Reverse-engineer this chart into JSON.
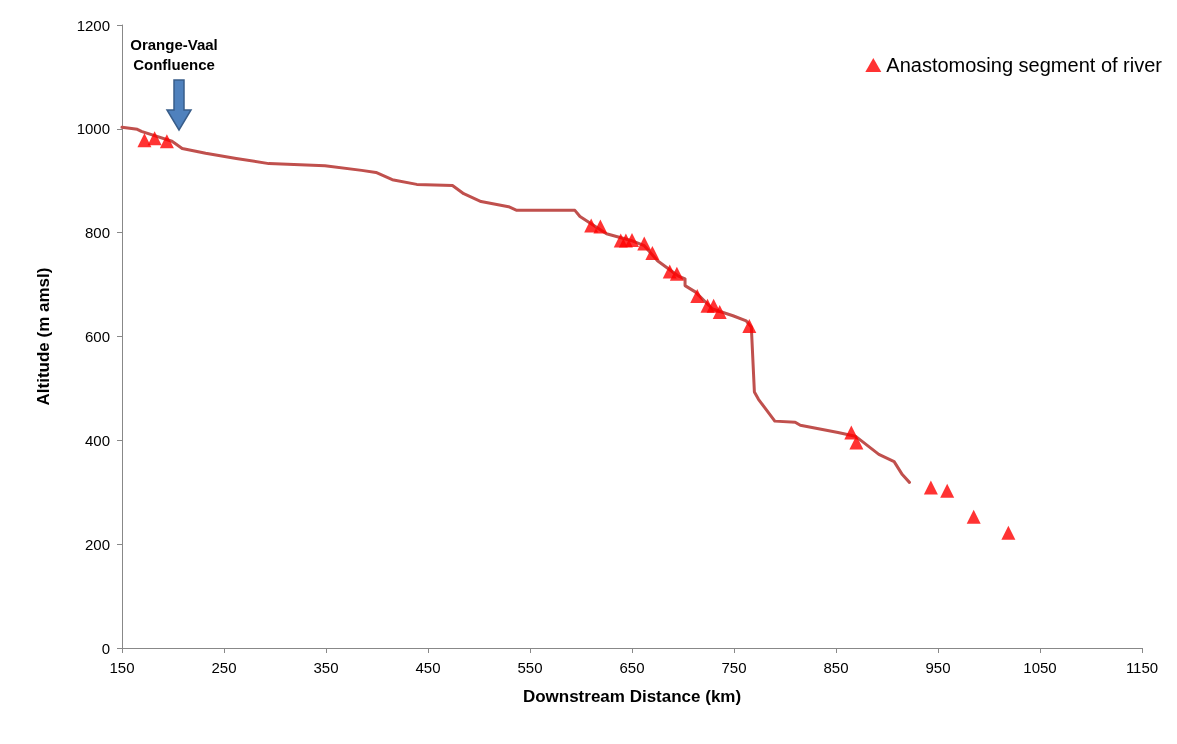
{
  "chart_data": {
    "type": "line",
    "xlabel": "Downstream Distance (km)",
    "ylabel": "Altitude (m amsl)",
    "xlim": [
      150,
      1150
    ],
    "xticks": [
      150,
      250,
      350,
      450,
      550,
      650,
      750,
      850,
      950,
      1050,
      1150
    ],
    "ylim": [
      0,
      1200
    ],
    "yticks": [
      0,
      200,
      400,
      600,
      800,
      1000,
      1200
    ],
    "grid": false,
    "legend": "top right",
    "annotations": [
      "Orange-Vaal Confluence"
    ],
    "series": [
      {
        "color": "#c0504d",
        "marker": "none",
        "line_style": "solid",
        "x": [
          150,
          165,
          169,
          199,
          209,
          232,
          262,
          294,
          349,
          385,
          399,
          415,
          439,
          474,
          485,
          502,
          529,
          537,
          594,
          599,
          625,
          649,
          662,
          675,
          695,
          702,
          702,
          712,
          729,
          749,
          762,
          767,
          770,
          774,
          790,
          810,
          815,
          852,
          869,
          892,
          907,
          915,
          922
        ],
        "values": [
          1003,
          999,
          995,
          976,
          962,
          953,
          943,
          933,
          929,
          920,
          916,
          902,
          893,
          891,
          875,
          860,
          850,
          843,
          843,
          831,
          798,
          785,
          775,
          746,
          717,
          711,
          698,
          686,
          653,
          640,
          630,
          618,
          493,
          479,
          437,
          435,
          429,
          415,
          408,
          373,
          359,
          334,
          319
        ]
      },
      {
        "type": "scatter",
        "name": "Anastomosing segment of river",
        "color": "#ff0000",
        "marker": "triangle",
        "x": [
          172,
          182,
          194,
          610,
          619,
          639,
          644,
          650,
          662,
          670,
          687,
          694,
          714,
          724,
          730,
          736,
          765,
          865,
          870,
          943,
          959,
          985,
          1019
        ],
        "values": [
          978,
          982,
          976,
          814,
          812,
          785,
          785,
          786,
          779,
          761,
          725,
          721,
          678,
          659,
          659,
          647,
          620,
          415,
          396,
          309,
          303,
          253,
          222
        ]
      }
    ]
  }
}
